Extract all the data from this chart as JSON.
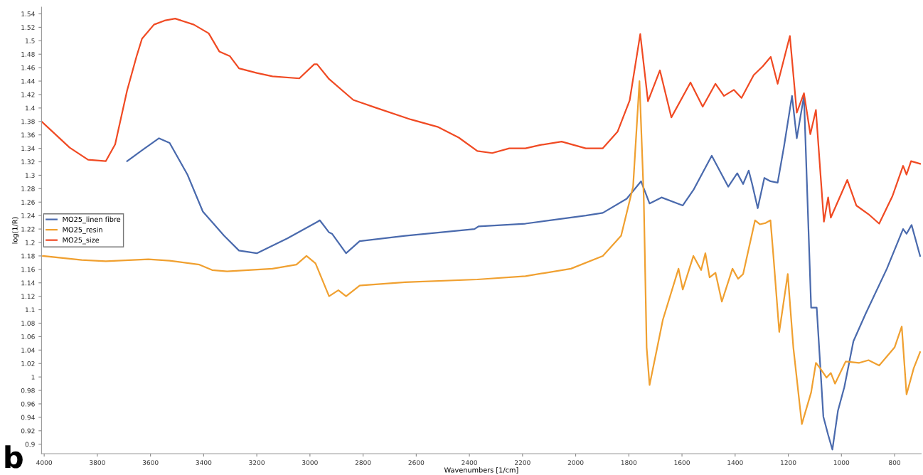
{
  "chart_data": {
    "type": "line",
    "xlabel": "Wavenumbers [1/cm]",
    "ylabel": "log(1/R)",
    "xlim": [
      4010,
      700
    ],
    "ylim": [
      0.886,
      1.55
    ],
    "xticks": [
      4000,
      3800,
      3600,
      3400,
      3200,
      3000,
      2800,
      2600,
      2400,
      2200,
      2000,
      1800,
      1600,
      1400,
      1200,
      1000,
      800
    ],
    "yticks": [
      0.9,
      0.92,
      0.94,
      0.96,
      0.98,
      1,
      1.02,
      1.04,
      1.06,
      1.08,
      1.1,
      1.12,
      1.14,
      1.16,
      1.18,
      1.2,
      1.22,
      1.24,
      1.26,
      1.28,
      1.3,
      1.32,
      1.34,
      1.36,
      1.38,
      1.4,
      1.42,
      1.44,
      1.46,
      1.48,
      1.5,
      1.52,
      1.54
    ],
    "grid": false,
    "legend": "left",
    "marker": "none",
    "line_style": "solid",
    "annotations": [
      "b"
    ],
    "series": [
      {
        "name": "MO25_linen fibre",
        "color": "#4a6aad",
        "x": [
          3688,
          3632,
          3568,
          3528,
          3461,
          3403,
          3323,
          3267,
          3200,
          3085,
          2971,
          2963,
          2928,
          2917,
          2864,
          2813,
          2642,
          2381,
          2365,
          2189,
          1962,
          1898,
          1808,
          1754,
          1722,
          1677,
          1597,
          1557,
          1488,
          1426,
          1392,
          1370,
          1349,
          1336,
          1315,
          1290,
          1267,
          1240,
          1216,
          1186,
          1168,
          1141,
          1114,
          1093,
          1068,
          1050,
          1034,
          1013,
          989,
          955,
          909,
          829,
          768,
          755,
          736,
          704
        ],
        "values": [
          1.321,
          1.337,
          1.355,
          1.348,
          1.301,
          1.246,
          1.21,
          1.188,
          1.184,
          1.206,
          1.231,
          1.233,
          1.215,
          1.213,
          1.184,
          1.202,
          1.21,
          1.22,
          1.224,
          1.228,
          1.24,
          1.244,
          1.265,
          1.291,
          1.258,
          1.267,
          1.255,
          1.278,
          1.329,
          1.283,
          1.303,
          1.287,
          1.307,
          1.287,
          1.251,
          1.296,
          1.291,
          1.289,
          1.343,
          1.418,
          1.355,
          1.418,
          1.103,
          1.103,
          0.941,
          0.914,
          0.892,
          0.95,
          0.985,
          1.053,
          1.094,
          1.161,
          1.22,
          1.213,
          1.226,
          1.18
        ]
      },
      {
        "name": "MO25_resin",
        "color": "#f0a030",
        "x": [
          4005,
          3859,
          3768,
          3608,
          3528,
          3416,
          3368,
          3312,
          3141,
          3051,
          3013,
          2979,
          2928,
          2893,
          2864,
          2813,
          2642,
          2370,
          2189,
          2018,
          1898,
          1829,
          1784,
          1760,
          1744,
          1733,
          1722,
          1693,
          1672,
          1613,
          1597,
          1557,
          1528,
          1512,
          1496,
          1474,
          1450,
          1410,
          1389,
          1370,
          1325,
          1307,
          1285,
          1267,
          1256,
          1234,
          1202,
          1181,
          1149,
          1114,
          1096,
          1080,
          1056,
          1040,
          1024,
          984,
          933,
          898,
          858,
          800,
          773,
          755,
          728,
          704
        ],
        "values": [
          1.18,
          1.174,
          1.172,
          1.175,
          1.173,
          1.167,
          1.159,
          1.157,
          1.161,
          1.167,
          1.18,
          1.169,
          1.12,
          1.129,
          1.12,
          1.136,
          1.141,
          1.145,
          1.15,
          1.161,
          1.18,
          1.21,
          1.283,
          1.44,
          1.269,
          1.044,
          0.988,
          1.044,
          1.085,
          1.161,
          1.13,
          1.18,
          1.159,
          1.184,
          1.148,
          1.155,
          1.112,
          1.161,
          1.146,
          1.153,
          1.233,
          1.227,
          1.229,
          1.233,
          1.18,
          1.067,
          1.153,
          1.044,
          0.93,
          0.977,
          1.021,
          1.013,
          0.999,
          1.006,
          0.99,
          1.023,
          1.021,
          1.025,
          1.017,
          1.044,
          1.075,
          0.974,
          1.013,
          1.037
        ]
      },
      {
        "name": "MO25_size",
        "color": "#f04a23",
        "x": [
          4010,
          3904,
          3835,
          3768,
          3733,
          3688,
          3653,
          3632,
          3587,
          3547,
          3507,
          3437,
          3381,
          3341,
          3301,
          3267,
          3200,
          3141,
          3040,
          2984,
          2973,
          2928,
          2837,
          2757,
          2621,
          2520,
          2440,
          2370,
          2314,
          2250,
          2189,
          2133,
          2053,
          1962,
          1898,
          1842,
          1797,
          1757,
          1728,
          1683,
          1640,
          1568,
          1522,
          1474,
          1442,
          1405,
          1376,
          1330,
          1296,
          1266,
          1240,
          1194,
          1168,
          1141,
          1117,
          1096,
          1066,
          1050,
          1040,
          1000,
          978,
          944,
          898,
          858,
          808,
          768,
          755,
          738,
          704
        ],
        "values": [
          1.38,
          1.341,
          1.323,
          1.321,
          1.346,
          1.426,
          1.476,
          1.503,
          1.524,
          1.53,
          1.533,
          1.524,
          1.511,
          1.484,
          1.477,
          1.459,
          1.452,
          1.447,
          1.444,
          1.465,
          1.465,
          1.443,
          1.412,
          1.401,
          1.383,
          1.372,
          1.356,
          1.336,
          1.333,
          1.34,
          1.34,
          1.345,
          1.35,
          1.34,
          1.34,
          1.365,
          1.411,
          1.51,
          1.41,
          1.456,
          1.386,
          1.438,
          1.402,
          1.436,
          1.418,
          1.427,
          1.415,
          1.449,
          1.462,
          1.476,
          1.436,
          1.507,
          1.393,
          1.422,
          1.361,
          1.397,
          1.231,
          1.267,
          1.237,
          1.273,
          1.293,
          1.255,
          1.242,
          1.228,
          1.269,
          1.314,
          1.301,
          1.321,
          1.317
        ]
      }
    ]
  }
}
